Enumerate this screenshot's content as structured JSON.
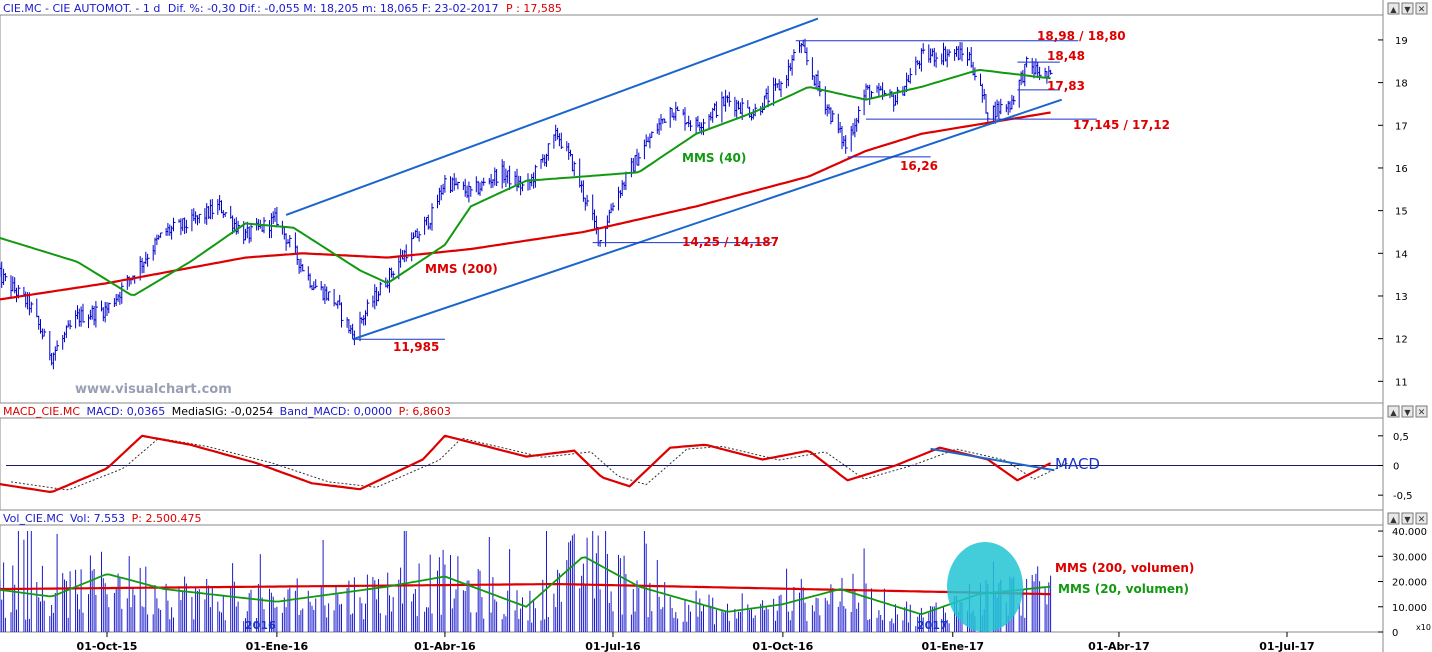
{
  "header_price": {
    "symbol": "CIE.MC - CIE AUTOMOT. - 1 d",
    "stats": "Dif. %: -0,30 Dif.: -0,055 M: 18,205 m: 18,065 F: 23-02-2017",
    "last": "P : 17,585"
  },
  "header_macd": {
    "name": "MACD_CIE.MC",
    "macd": "MACD: 0,0365",
    "signal": "MediaSIG: -0,0254",
    "band": "Band_MACD: 0,0000",
    "last": "P: 6,8603"
  },
  "header_vol": {
    "name": "Vol_CIE.MC",
    "vol": "Vol: 7.553",
    "last": "P: 2.500.475"
  },
  "watermark": "www.visualchart.com",
  "annotations": {
    "res_high": "18,98 / 18,80",
    "res_mid": "18,48",
    "sup_1783": "17,83",
    "sup_17145": "17,145 / 17,12",
    "sup_1626": "16,26",
    "sup_1425": "14,25 / 14,187",
    "low_11985": "11,985",
    "mms40": "MMS (40)",
    "mms200": "MMS (200)",
    "macd_label": "MACD",
    "vol_mms200": "MMS (200, volumen)",
    "vol_mms20": "MMS (20, volumen)",
    "year_2016": "2016",
    "year_2017": "2017",
    "vol_scale": "x10"
  },
  "colors": {
    "price_bars": "#0000cc",
    "mms40": "#119911",
    "mms200": "#dd0000",
    "trendline": "#1a66cc",
    "annotation_red": "#dd0000",
    "annotation_blue": "#1a33cc",
    "macd_line": "#dd0000",
    "signal_line": "#333333",
    "volume_bars": "#1a1acc",
    "volume_highlight": "#22c4d4"
  },
  "chart_data": {
    "type": "candlestick",
    "x_ticks": [
      "01-Oct-15",
      "01-Ene-16",
      "01-Abr-16",
      "01-Jul-16",
      "01-Oct-16",
      "01-Ene-17",
      "01-Abr-17",
      "01-Jul-17"
    ],
    "price_axis": {
      "ticks": [
        "19",
        "18",
        "17",
        "16",
        "15",
        "14",
        "13",
        "12",
        "11"
      ],
      "ylim": [
        10.7,
        19.5
      ]
    },
    "macd_axis": {
      "ticks": [
        "0,5",
        "0",
        "-0,5"
      ],
      "ylim": [
        -0.7,
        0.75
      ]
    },
    "volume_axis": {
      "ticks": [
        "40.000",
        "30.000",
        "20.000",
        "10.000",
        "0"
      ],
      "ylim": [
        0,
        42000
      ]
    },
    "price_close_path": [
      [
        "2015-08-01",
        13.6
      ],
      [
        "2015-08-20",
        12.8
      ],
      [
        "2015-09-01",
        11.6
      ],
      [
        "2015-09-15",
        12.5
      ],
      [
        "2015-10-01",
        12.7
      ],
      [
        "2015-10-15",
        13.5
      ],
      [
        "2015-11-01",
        14.5
      ],
      [
        "2015-11-15",
        14.7
      ],
      [
        "2015-12-01",
        15.1
      ],
      [
        "2015-12-15",
        14.4
      ],
      [
        "2016-01-01",
        14.8
      ],
      [
        "2016-01-08",
        14.2
      ],
      [
        "2016-01-20",
        13.3
      ],
      [
        "2016-02-01",
        12.9
      ],
      [
        "2016-02-11",
        12.1
      ],
      [
        "2016-02-25",
        13.1
      ],
      [
        "2016-03-10",
        14.0
      ],
      [
        "2016-03-25",
        14.9
      ],
      [
        "2016-04-01",
        15.7
      ],
      [
        "2016-04-15",
        15.4
      ],
      [
        "2016-05-01",
        15.9
      ],
      [
        "2016-05-15",
        15.5
      ],
      [
        "2016-06-01",
        16.8
      ],
      [
        "2016-06-10",
        16.0
      ],
      [
        "2016-06-24",
        14.3
      ],
      [
        "2016-07-01",
        15.2
      ],
      [
        "2016-07-15",
        16.3
      ],
      [
        "2016-08-01",
        17.4
      ],
      [
        "2016-08-15",
        17.0
      ],
      [
        "2016-09-01",
        17.6
      ],
      [
        "2016-09-15",
        17.3
      ],
      [
        "2016-10-01",
        18.0
      ],
      [
        "2016-10-10",
        18.9
      ],
      [
        "2016-10-20",
        17.9
      ],
      [
        "2016-11-04",
        16.5
      ],
      [
        "2016-11-15",
        17.8
      ],
      [
        "2016-12-01",
        17.6
      ],
      [
        "2016-12-15",
        18.6
      ],
      [
        "2017-01-01",
        18.7
      ],
      [
        "2017-01-10",
        18.6
      ],
      [
        "2017-01-20",
        17.3
      ],
      [
        "2017-02-01",
        17.5
      ],
      [
        "2017-02-10",
        18.4
      ],
      [
        "2017-02-23",
        18.1
      ]
    ],
    "mms40_path": [
      [
        "2015-08-01",
        14.4
      ],
      [
        "2015-09-15",
        13.8
      ],
      [
        "2015-10-15",
        13.0
      ],
      [
        "2015-11-15",
        13.8
      ],
      [
        "2015-12-15",
        14.7
      ],
      [
        "2016-01-10",
        14.6
      ],
      [
        "2016-02-15",
        13.6
      ],
      [
        "2016-03-01",
        13.3
      ],
      [
        "2016-04-01",
        14.2
      ],
      [
        "2016-04-15",
        15.1
      ],
      [
        "2016-05-15",
        15.7
      ],
      [
        "2016-06-15",
        15.8
      ],
      [
        "2016-07-15",
        15.9
      ],
      [
        "2016-08-15",
        16.8
      ],
      [
        "2016-09-15",
        17.3
      ],
      [
        "2016-10-15",
        17.9
      ],
      [
        "2016-11-15",
        17.6
      ],
      [
        "2016-12-15",
        17.9
      ],
      [
        "2017-01-15",
        18.3
      ],
      [
        "2017-02-23",
        18.1
      ]
    ],
    "mms200_path": [
      [
        "2015-08-01",
        12.9
      ],
      [
        "2015-10-01",
        13.3
      ],
      [
        "2015-12-15",
        13.9
      ],
      [
        "2016-01-15",
        14.0
      ],
      [
        "2016-03-01",
        13.9
      ],
      [
        "2016-04-15",
        14.1
      ],
      [
        "2016-06-15",
        14.5
      ],
      [
        "2016-08-15",
        15.1
      ],
      [
        "2016-10-15",
        15.8
      ],
      [
        "2016-11-15",
        16.4
      ],
      [
        "2016-12-15",
        16.8
      ],
      [
        "2017-02-23",
        17.3
      ]
    ],
    "levels": [
      {
        "label": "18,98 / 18,80",
        "value": 18.98,
        "from": "2016-10-08",
        "to": "2017-03-10"
      },
      {
        "label": "18,48",
        "value": 18.48,
        "from": "2017-02-05",
        "to": "2017-02-28"
      },
      {
        "label": "17,83",
        "value": 17.83,
        "from": "2017-02-05",
        "to": "2017-02-28"
      },
      {
        "label": "17,145 / 17,12",
        "value": 17.145,
        "from": "2016-11-15",
        "to": "2017-03-20"
      },
      {
        "label": "16,26",
        "value": 16.26,
        "from": "2016-11-05",
        "to": "2016-12-20"
      },
      {
        "label": "14,25 / 14,187",
        "value": 14.25,
        "from": "2016-06-20",
        "to": "2016-09-25"
      },
      {
        "label": "11,985",
        "value": 11.985,
        "from": "2016-02-11",
        "to": "2016-04-01"
      }
    ],
    "trendlines": [
      {
        "from": [
          "2016-01-06",
          14.9
        ],
        "to": [
          "2016-10-20",
          19.5
        ]
      },
      {
        "from": [
          "2016-02-11",
          11.985
        ],
        "to": [
          "2017-03-01",
          17.6
        ]
      }
    ],
    "macd_path": [
      [
        "2015-08-01",
        -0.3
      ],
      [
        "2015-09-01",
        -0.45
      ],
      [
        "2015-10-01",
        -0.05
      ],
      [
        "2015-10-20",
        0.5
      ],
      [
        "2015-11-15",
        0.35
      ],
      [
        "2015-12-20",
        0.05
      ],
      [
        "2016-01-20",
        -0.3
      ],
      [
        "2016-02-15",
        -0.4
      ],
      [
        "2016-03-20",
        0.1
      ],
      [
        "2016-04-01",
        0.5
      ],
      [
        "2016-04-20",
        0.35
      ],
      [
        "2016-05-15",
        0.15
      ],
      [
        "2016-06-10",
        0.25
      ],
      [
        "2016-06-25",
        -0.2
      ],
      [
        "2016-07-10",
        -0.35
      ],
      [
        "2016-08-01",
        0.3
      ],
      [
        "2016-08-20",
        0.35
      ],
      [
        "2016-09-20",
        0.1
      ],
      [
        "2016-10-15",
        0.25
      ],
      [
        "2016-11-05",
        -0.25
      ],
      [
        "2016-12-01",
        0.0
      ],
      [
        "2016-12-25",
        0.3
      ],
      [
        "2017-01-20",
        0.1
      ],
      [
        "2017-02-05",
        -0.25
      ],
      [
        "2017-02-23",
        0.04
      ]
    ],
    "volume_ma20_path": [
      [
        "2015-08-01",
        17000
      ],
      [
        "2015-09-01",
        14000
      ],
      [
        "2015-10-01",
        23000
      ],
      [
        "2015-11-01",
        17000
      ],
      [
        "2016-01-01",
        12000
      ],
      [
        "2016-03-01",
        18000
      ],
      [
        "2016-04-01",
        22000
      ],
      [
        "2016-05-15",
        10000
      ],
      [
        "2016-06-15",
        30000
      ],
      [
        "2016-07-15",
        18000
      ],
      [
        "2016-09-01",
        8000
      ],
      [
        "2016-10-01",
        11000
      ],
      [
        "2016-11-01",
        17000
      ],
      [
        "2016-12-15",
        7000
      ],
      [
        "2017-01-15",
        15000
      ],
      [
        "2017-02-23",
        18000
      ]
    ],
    "volume_ma200_path": [
      [
        "2015-08-01",
        17000
      ],
      [
        "2016-06-01",
        19000
      ],
      [
        "2017-02-23",
        15000
      ]
    ]
  }
}
